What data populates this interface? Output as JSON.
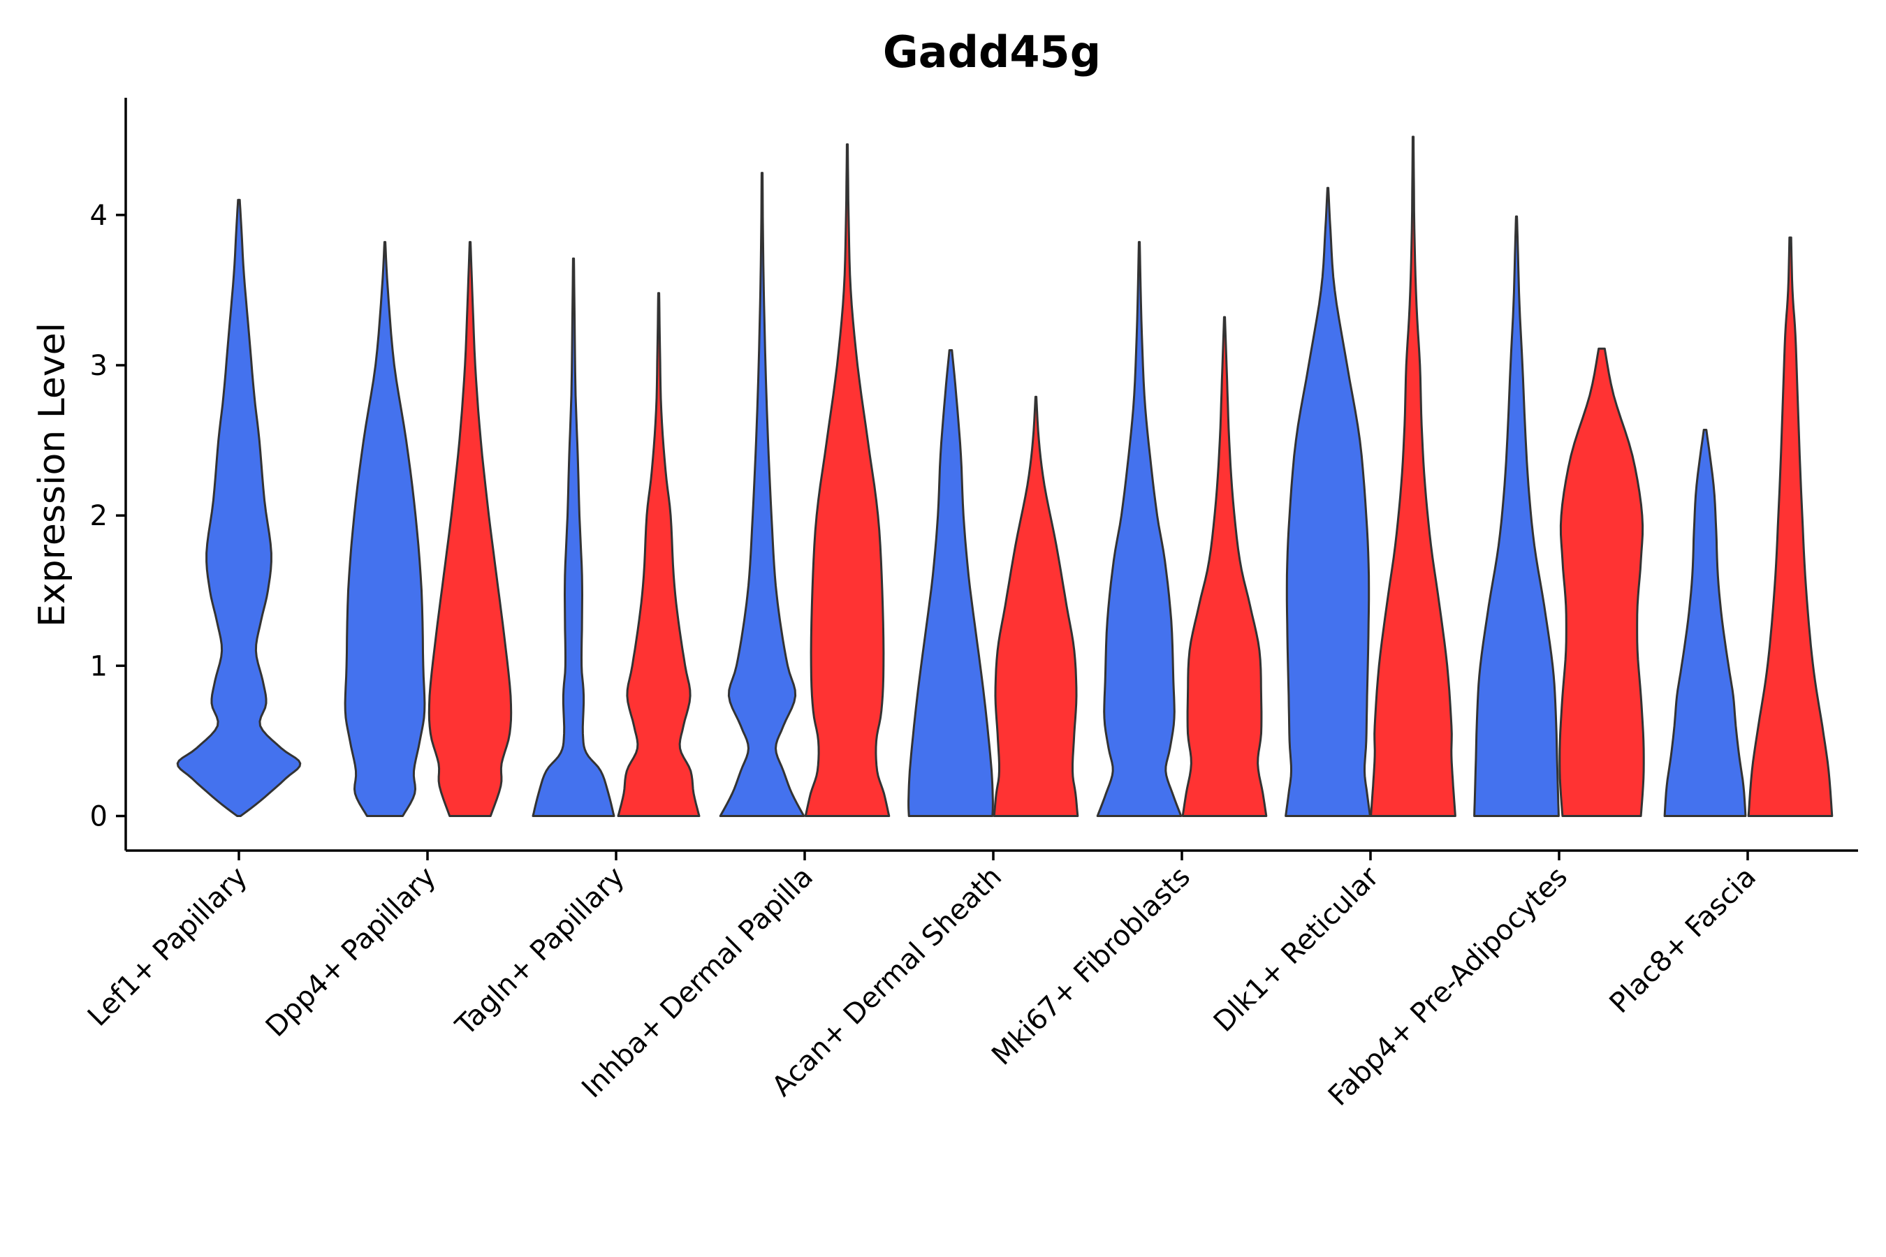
{
  "chart_data": {
    "type": "violin",
    "title": "Gadd45g",
    "ylabel": "Expression Level",
    "xlabel": "",
    "ylim": [
      -0.23,
      4.78
    ],
    "yticks": [
      0,
      1,
      2,
      3,
      4
    ],
    "grid": false,
    "legend": "none",
    "colors": {
      "blue": "#4472EE",
      "red": "#FF3333"
    },
    "categories": [
      "Lef1+ Papillary",
      "Dpp4+ Papillary",
      "Tagln+ Papillary",
      "Inhba+ Dermal Papilla",
      "Acan+ Dermal Sheath",
      "Mki67+ Fibroblasts",
      "Dlk1+ Reticular",
      "Fabp4+ Pre-Adipocytes",
      "Plac8+ Fascia"
    ],
    "violins": [
      {
        "category": "Lef1+ Papillary",
        "group": "blue",
        "max": 4.1,
        "profile": [
          [
            0,
            0.02
          ],
          [
            0.1,
            0.25
          ],
          [
            0.25,
            0.55
          ],
          [
            0.35,
            0.72
          ],
          [
            0.45,
            0.5
          ],
          [
            0.6,
            0.25
          ],
          [
            0.75,
            0.32
          ],
          [
            0.9,
            0.28
          ],
          [
            1.1,
            0.2
          ],
          [
            1.3,
            0.26
          ],
          [
            1.5,
            0.34
          ],
          [
            1.75,
            0.38
          ],
          [
            2.1,
            0.3
          ],
          [
            2.5,
            0.24
          ],
          [
            2.8,
            0.18
          ],
          [
            3.2,
            0.12
          ],
          [
            3.6,
            0.06
          ],
          [
            3.9,
            0.03
          ],
          [
            4.1,
            0.01
          ]
        ]
      },
      {
        "category": "Dpp4+ Papillary",
        "group": "blue",
        "max": 3.82,
        "profile": [
          [
            0,
            0.42
          ],
          [
            0.15,
            0.7
          ],
          [
            0.3,
            0.68
          ],
          [
            0.5,
            0.82
          ],
          [
            0.7,
            0.93
          ],
          [
            1.0,
            0.9
          ],
          [
            1.5,
            0.86
          ],
          [
            2.0,
            0.72
          ],
          [
            2.5,
            0.5
          ],
          [
            3.0,
            0.22
          ],
          [
            3.5,
            0.07
          ],
          [
            3.82,
            0.01
          ]
        ]
      },
      {
        "category": "Dpp4+ Papillary",
        "group": "red",
        "max": 3.82,
        "profile": [
          [
            0,
            0.48
          ],
          [
            0.2,
            0.72
          ],
          [
            0.35,
            0.74
          ],
          [
            0.55,
            0.93
          ],
          [
            0.8,
            0.95
          ],
          [
            1.2,
            0.8
          ],
          [
            1.6,
            0.62
          ],
          [
            2.0,
            0.44
          ],
          [
            2.5,
            0.25
          ],
          [
            3.0,
            0.12
          ],
          [
            3.5,
            0.05
          ],
          [
            3.82,
            0.01
          ]
        ]
      },
      {
        "category": "Tagln+ Papillary",
        "group": "blue",
        "max": 3.71,
        "profile": [
          [
            0,
            0.95
          ],
          [
            0.15,
            0.82
          ],
          [
            0.3,
            0.64
          ],
          [
            0.42,
            0.3
          ],
          [
            0.55,
            0.22
          ],
          [
            0.8,
            0.24
          ],
          [
            1.0,
            0.19
          ],
          [
            1.3,
            0.2
          ],
          [
            1.6,
            0.2
          ],
          [
            2.0,
            0.14
          ],
          [
            2.4,
            0.1
          ],
          [
            2.8,
            0.05
          ],
          [
            3.2,
            0.03
          ],
          [
            3.71,
            0.01
          ]
        ]
      },
      {
        "category": "Tagln+ Papillary",
        "group": "red",
        "max": 3.48,
        "profile": [
          [
            0,
            0.95
          ],
          [
            0.15,
            0.82
          ],
          [
            0.3,
            0.75
          ],
          [
            0.45,
            0.5
          ],
          [
            0.6,
            0.58
          ],
          [
            0.8,
            0.74
          ],
          [
            1.0,
            0.62
          ],
          [
            1.3,
            0.46
          ],
          [
            1.6,
            0.35
          ],
          [
            2.0,
            0.28
          ],
          [
            2.3,
            0.16
          ],
          [
            2.7,
            0.06
          ],
          [
            3.1,
            0.03
          ],
          [
            3.48,
            0.01
          ]
        ]
      },
      {
        "category": "Inhba+ Dermal Papilla",
        "group": "blue",
        "max": 4.28,
        "profile": [
          [
            0,
            0.98
          ],
          [
            0.15,
            0.7
          ],
          [
            0.3,
            0.5
          ],
          [
            0.45,
            0.32
          ],
          [
            0.6,
            0.5
          ],
          [
            0.8,
            0.78
          ],
          [
            1.0,
            0.6
          ],
          [
            1.3,
            0.42
          ],
          [
            1.6,
            0.3
          ],
          [
            2.0,
            0.22
          ],
          [
            2.5,
            0.14
          ],
          [
            3.0,
            0.08
          ],
          [
            3.5,
            0.04
          ],
          [
            3.9,
            0.02
          ],
          [
            4.28,
            0.01
          ]
        ]
      },
      {
        "category": "Inhba+ Dermal Papilla",
        "group": "red",
        "max": 4.47,
        "profile": [
          [
            0,
            0.98
          ],
          [
            0.15,
            0.86
          ],
          [
            0.3,
            0.7
          ],
          [
            0.5,
            0.68
          ],
          [
            0.7,
            0.8
          ],
          [
            1.0,
            0.85
          ],
          [
            1.5,
            0.82
          ],
          [
            2.0,
            0.72
          ],
          [
            2.5,
            0.48
          ],
          [
            3.0,
            0.24
          ],
          [
            3.5,
            0.08
          ],
          [
            4.0,
            0.03
          ],
          [
            4.47,
            0.01
          ]
        ]
      },
      {
        "category": "Acan+ Dermal Sheath",
        "group": "blue",
        "max": 3.1,
        "profile": [
          [
            0,
            0.98
          ],
          [
            0.1,
            0.99
          ],
          [
            0.3,
            0.96
          ],
          [
            0.6,
            0.86
          ],
          [
            0.9,
            0.74
          ],
          [
            1.2,
            0.6
          ],
          [
            1.6,
            0.42
          ],
          [
            2.0,
            0.3
          ],
          [
            2.4,
            0.24
          ],
          [
            2.8,
            0.13
          ],
          [
            3.1,
            0.03
          ]
        ]
      },
      {
        "category": "Acan+ Dermal Sheath",
        "group": "red",
        "max": 2.79,
        "profile": [
          [
            0,
            0.98
          ],
          [
            0.15,
            0.93
          ],
          [
            0.3,
            0.86
          ],
          [
            0.55,
            0.9
          ],
          [
            0.8,
            0.95
          ],
          [
            1.1,
            0.9
          ],
          [
            1.4,
            0.72
          ],
          [
            1.8,
            0.48
          ],
          [
            2.2,
            0.2
          ],
          [
            2.5,
            0.07
          ],
          [
            2.79,
            0.01
          ]
        ]
      },
      {
        "category": "Mki67+ Fibroblasts",
        "group": "blue",
        "max": 3.82,
        "profile": [
          [
            0,
            0.98
          ],
          [
            0.15,
            0.78
          ],
          [
            0.3,
            0.62
          ],
          [
            0.45,
            0.72
          ],
          [
            0.65,
            0.82
          ],
          [
            0.9,
            0.8
          ],
          [
            1.3,
            0.75
          ],
          [
            1.7,
            0.6
          ],
          [
            2.0,
            0.42
          ],
          [
            2.4,
            0.25
          ],
          [
            2.8,
            0.12
          ],
          [
            3.3,
            0.05
          ],
          [
            3.82,
            0.01
          ]
        ]
      },
      {
        "category": "Mki67+ Fibroblasts",
        "group": "red",
        "max": 3.32,
        "profile": [
          [
            0,
            0.98
          ],
          [
            0.15,
            0.9
          ],
          [
            0.35,
            0.78
          ],
          [
            0.55,
            0.86
          ],
          [
            0.8,
            0.86
          ],
          [
            1.1,
            0.82
          ],
          [
            1.4,
            0.6
          ],
          [
            1.7,
            0.36
          ],
          [
            2.1,
            0.2
          ],
          [
            2.5,
            0.11
          ],
          [
            2.9,
            0.06
          ],
          [
            3.32,
            0.01
          ]
        ]
      },
      {
        "category": "Dlk1+ Reticular",
        "group": "blue",
        "max": 4.18,
        "profile": [
          [
            0,
            0.99
          ],
          [
            0.15,
            0.92
          ],
          [
            0.3,
            0.86
          ],
          [
            0.5,
            0.9
          ],
          [
            0.8,
            0.92
          ],
          [
            1.2,
            0.95
          ],
          [
            1.6,
            0.96
          ],
          [
            2.0,
            0.9
          ],
          [
            2.5,
            0.75
          ],
          [
            3.0,
            0.45
          ],
          [
            3.5,
            0.16
          ],
          [
            3.9,
            0.06
          ],
          [
            4.18,
            0.01
          ]
        ]
      },
      {
        "category": "Dlk1+ Reticular",
        "group": "red",
        "max": 4.52,
        "profile": [
          [
            0,
            0.99
          ],
          [
            0.2,
            0.94
          ],
          [
            0.4,
            0.9
          ],
          [
            0.6,
            0.9
          ],
          [
            1.0,
            0.8
          ],
          [
            1.4,
            0.62
          ],
          [
            1.8,
            0.42
          ],
          [
            2.2,
            0.28
          ],
          [
            2.6,
            0.2
          ],
          [
            3.0,
            0.16
          ],
          [
            3.4,
            0.08
          ],
          [
            3.9,
            0.03
          ],
          [
            4.52,
            0.01
          ]
        ]
      },
      {
        "category": "Fabp4+ Pre-Adipocytes",
        "group": "blue",
        "max": 3.99,
        "profile": [
          [
            0,
            0.99
          ],
          [
            0.3,
            0.96
          ],
          [
            0.7,
            0.92
          ],
          [
            1.0,
            0.85
          ],
          [
            1.4,
            0.65
          ],
          [
            1.8,
            0.42
          ],
          [
            2.2,
            0.28
          ],
          [
            2.6,
            0.2
          ],
          [
            3.0,
            0.14
          ],
          [
            3.4,
            0.07
          ],
          [
            3.8,
            0.03
          ],
          [
            3.99,
            0.01
          ]
        ]
      },
      {
        "category": "Fabp4+ Pre-Adipocytes",
        "group": "red",
        "max": 3.11,
        "profile": [
          [
            0,
            0.92
          ],
          [
            0.25,
            0.98
          ],
          [
            0.5,
            0.98
          ],
          [
            0.8,
            0.92
          ],
          [
            1.1,
            0.84
          ],
          [
            1.4,
            0.84
          ],
          [
            1.7,
            0.92
          ],
          [
            2.0,
            0.95
          ],
          [
            2.4,
            0.72
          ],
          [
            2.8,
            0.28
          ],
          [
            3.11,
            0.07
          ]
        ]
      },
      {
        "category": "Plac8+ Fascia",
        "group": "blue",
        "max": 2.57,
        "profile": [
          [
            0,
            0.95
          ],
          [
            0.2,
            0.9
          ],
          [
            0.4,
            0.8
          ],
          [
            0.6,
            0.72
          ],
          [
            0.8,
            0.66
          ],
          [
            1.0,
            0.55
          ],
          [
            1.3,
            0.4
          ],
          [
            1.6,
            0.3
          ],
          [
            1.9,
            0.26
          ],
          [
            2.2,
            0.2
          ],
          [
            2.57,
            0.03
          ]
        ]
      },
      {
        "category": "Plac8+ Fascia",
        "group": "red",
        "max": 3.85,
        "profile": [
          [
            0,
            0.98
          ],
          [
            0.3,
            0.9
          ],
          [
            0.6,
            0.75
          ],
          [
            0.9,
            0.58
          ],
          [
            1.2,
            0.46
          ],
          [
            1.6,
            0.35
          ],
          [
            2.0,
            0.28
          ],
          [
            2.4,
            0.22
          ],
          [
            2.8,
            0.17
          ],
          [
            3.2,
            0.12
          ],
          [
            3.5,
            0.05
          ],
          [
            3.85,
            0.02
          ]
        ]
      }
    ]
  }
}
